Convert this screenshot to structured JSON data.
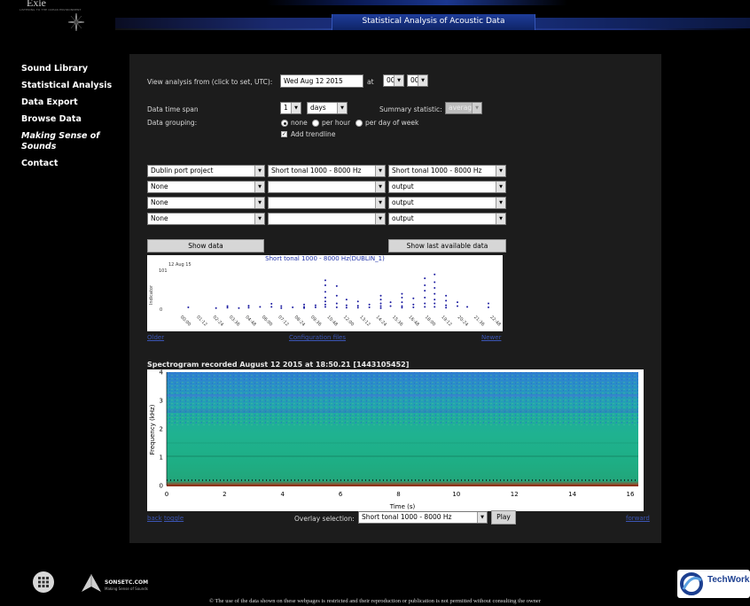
{
  "header": {
    "logo_text": "Exie",
    "logo_tagline": "LISTENING TO THE OCEAN ENVIRONMENT",
    "page_title": "Statistical Analysis of Acoustic Data"
  },
  "sidebar": {
    "items": [
      {
        "label": "Sound Library"
      },
      {
        "label": "Statistical Analysis"
      },
      {
        "label": "Data Export"
      },
      {
        "label": "Browse Data"
      },
      {
        "label": "Making Sense of Sounds"
      },
      {
        "label": "Contact"
      }
    ]
  },
  "form": {
    "view_from_label": "View analysis from (click to set, UTC):",
    "date_value": "Wed Aug 12 2015",
    "at_label": "at",
    "hour": "00",
    "minute": "00",
    "time_span_label": "Data time span",
    "time_span_value": "1",
    "time_span_unit": "days",
    "summary_label": "Summary statistic:",
    "summary_value": "average",
    "grouping_label": "Data grouping:",
    "grouping_options": [
      "none",
      "per hour",
      "per day of week"
    ],
    "grouping_selected": "none",
    "trendline_label": "Add trendline",
    "trendline_checked": true
  },
  "selectors": {
    "rows": [
      [
        "Dublin port project",
        "Short tonal 1000 - 8000 Hz",
        "Short tonal 1000 - 8000 Hz"
      ],
      [
        "None",
        "",
        "output"
      ],
      [
        "None",
        "",
        "output"
      ],
      [
        "None",
        "",
        "output"
      ]
    ]
  },
  "buttons": {
    "show_data": "Show data",
    "show_last": "Show last available data",
    "play": "Play"
  },
  "chart_data": {
    "type": "scatter",
    "title": "Short tonal 1000 - 8000 Hz(DUBLIN_1)",
    "date_label": "12 Aug 15",
    "ylabel": "Indicator",
    "ylim": [
      0,
      101
    ],
    "yticks": [
      "101",
      "0"
    ],
    "categories": [
      "00:00",
      "01:12",
      "02:24",
      "03:36",
      "04:48",
      "06:00",
      "07:12",
      "08:24",
      "09:36",
      "10:48",
      "12:00",
      "13:12",
      "14:24",
      "15:36",
      "16:48",
      "18:00",
      "19:12",
      "20:24",
      "21:36",
      "22:48"
    ],
    "series": [
      {
        "color": "#1a1aa0",
        "points": [
          [
            0.5,
            5
          ],
          [
            2.2,
            3
          ],
          [
            2.9,
            8
          ],
          [
            2.9,
            4
          ],
          [
            3.6,
            3
          ],
          [
            4.2,
            9
          ],
          [
            4.2,
            4
          ],
          [
            4.9,
            6
          ],
          [
            5.6,
            14
          ],
          [
            5.6,
            6
          ],
          [
            6.2,
            8
          ],
          [
            6.2,
            3
          ],
          [
            6.9,
            5
          ],
          [
            7.6,
            12
          ],
          [
            7.6,
            6
          ],
          [
            7.6,
            3
          ],
          [
            8.3,
            10
          ],
          [
            8.3,
            5
          ],
          [
            8.9,
            75
          ],
          [
            8.9,
            62
          ],
          [
            8.9,
            45
          ],
          [
            8.9,
            30
          ],
          [
            8.9,
            20
          ],
          [
            8.9,
            12
          ],
          [
            8.9,
            6
          ],
          [
            9.6,
            60
          ],
          [
            9.6,
            35
          ],
          [
            9.6,
            15
          ],
          [
            9.6,
            5
          ],
          [
            10.2,
            25
          ],
          [
            10.2,
            10
          ],
          [
            10.2,
            4
          ],
          [
            10.9,
            20
          ],
          [
            10.9,
            9
          ],
          [
            10.9,
            4
          ],
          [
            11.6,
            12
          ],
          [
            11.6,
            5
          ],
          [
            12.3,
            35
          ],
          [
            12.3,
            25
          ],
          [
            12.3,
            15
          ],
          [
            12.3,
            8
          ],
          [
            12.3,
            3
          ],
          [
            12.9,
            18
          ],
          [
            12.9,
            8
          ],
          [
            13.6,
            40
          ],
          [
            13.6,
            30
          ],
          [
            13.6,
            18
          ],
          [
            13.6,
            8
          ],
          [
            13.6,
            4
          ],
          [
            14.3,
            28
          ],
          [
            14.3,
            12
          ],
          [
            14.3,
            5
          ],
          [
            15.0,
            80
          ],
          [
            15.0,
            62
          ],
          [
            15.0,
            48
          ],
          [
            15.0,
            30
          ],
          [
            15.0,
            15
          ],
          [
            15.0,
            6
          ],
          [
            15.6,
            90
          ],
          [
            15.6,
            70
          ],
          [
            15.6,
            55
          ],
          [
            15.6,
            40
          ],
          [
            15.6,
            25
          ],
          [
            15.6,
            15
          ],
          [
            15.6,
            6
          ],
          [
            16.3,
            35
          ],
          [
            16.3,
            22
          ],
          [
            16.3,
            10
          ],
          [
            16.3,
            4
          ],
          [
            17.0,
            18
          ],
          [
            17.0,
            8
          ],
          [
            17.6,
            6
          ],
          [
            18.9,
            15
          ],
          [
            18.9,
            5
          ]
        ]
      }
    ]
  },
  "links": {
    "older": "Older",
    "config": "Configuration files",
    "newer": "Newer",
    "back": "back",
    "toggle": "toggle",
    "forward": "forward"
  },
  "spectrogram": {
    "title": "Spectrogram recorded August 12 2015 at 18:50.21 [1443105452]",
    "ylabel": "Frequency (kHz)",
    "xlabel": "Time (s)",
    "yticks": [
      "0",
      "1",
      "2",
      "3",
      "4"
    ],
    "xticks": [
      "0",
      "2",
      "4",
      "6",
      "8",
      "10",
      "12",
      "14",
      "16"
    ],
    "overlay_label": "Overlay selection:",
    "overlay_value": "Short tonal 1000 - 8000 Hz"
  },
  "footer": {
    "sonsetc_title": "SONSETC.COM",
    "sonsetc_sub": "Making Sense of Sounds",
    "copyright": "© The use of the data shown on these webpages is restricted and their reproduction or publication is not permitted without consulting the owner",
    "techworks": "TechWork"
  }
}
